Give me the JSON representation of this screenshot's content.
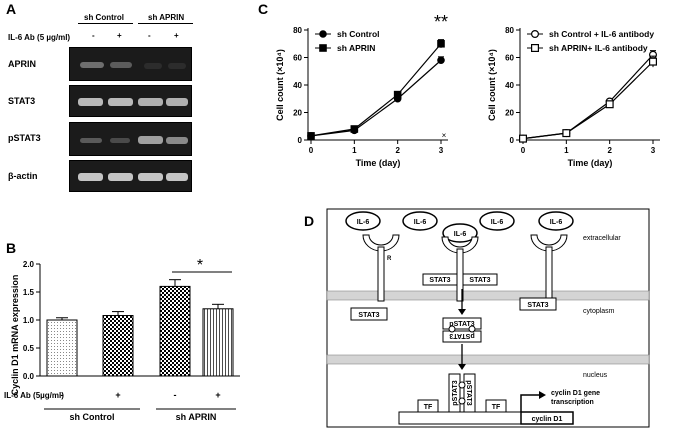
{
  "panels": {
    "a": "A",
    "b": "B",
    "c": "C",
    "d": "D"
  },
  "blot": {
    "group_control": "sh Control",
    "group_aprin": "sh APRIN",
    "treatment_label": "IL-6 Ab (5 µg/ml)",
    "signs": [
      "-",
      "+",
      "-",
      "+"
    ],
    "rows": [
      "APRIN",
      "STAT3",
      "pSTAT3",
      "β-actin"
    ]
  },
  "chart_data": [
    {
      "type": "bar",
      "panel": "B",
      "ylabel": "Cyclin D1 mRNA expression",
      "ylim": [
        0,
        2.0
      ],
      "yticks": [
        "0.0",
        "0.5",
        "1.0",
        "1.5",
        "2.0"
      ],
      "values": [
        1.0,
        1.08,
        1.6,
        1.2
      ],
      "errors": [
        0.04,
        0.07,
        0.12,
        0.08
      ],
      "patterns": [
        "dots",
        "checker",
        "checker",
        "hatch"
      ],
      "treatment_label": "IL-6 Ab (5µg/ml)",
      "signs": [
        "-",
        "+",
        "-",
        "+"
      ],
      "groups": [
        "sh Control",
        "sh APRIN"
      ],
      "significance": "*"
    },
    {
      "type": "line",
      "panel": "C-left",
      "xlabel": "Time (day)",
      "ylabel": "Cell count (×10⁴)",
      "x": [
        0,
        1,
        2,
        3
      ],
      "xticks": [
        "0",
        "1",
        "2",
        "3"
      ],
      "yticks": [
        "0",
        "20",
        "40",
        "60",
        "80"
      ],
      "ylim": [
        0,
        80
      ],
      "series": [
        {
          "name": "sh Control",
          "marker": "filled-circle",
          "values": [
            3,
            7,
            30,
            58
          ],
          "errors": [
            0.5,
            1,
            1.5,
            2.5
          ]
        },
        {
          "name": "sh APRIN",
          "marker": "filled-square",
          "values": [
            3,
            8,
            33,
            70
          ],
          "errors": [
            0.5,
            1,
            2,
            3
          ]
        }
      ],
      "significance": "**",
      "corner_mark": "×"
    },
    {
      "type": "line",
      "panel": "C-right",
      "xlabel": "Time (day)",
      "ylabel": "Cell count (×10⁴)",
      "x": [
        0,
        1,
        2,
        3
      ],
      "xticks": [
        "0",
        "1",
        "2",
        "3"
      ],
      "yticks": [
        "0",
        "20",
        "40",
        "60",
        "80"
      ],
      "ylim": [
        0,
        80
      ],
      "series": [
        {
          "name": "sh Control + IL-6 antibody",
          "marker": "open-circle",
          "values": [
            1,
            5,
            28,
            62
          ],
          "errors": [
            0.5,
            1,
            1.5,
            3
          ]
        },
        {
          "name": "sh APRIN+ IL-6 antibody",
          "marker": "open-square",
          "values": [
            1,
            5,
            26,
            57
          ],
          "errors": [
            0.5,
            1,
            1.5,
            4
          ]
        }
      ]
    }
  ],
  "diagram": {
    "il6": "IL-6",
    "receptor": "R",
    "stat3": "STAT3",
    "pstat3": "pSTAT3",
    "extracellular": "extracellular",
    "cytoplasm": "cytoplasm",
    "nucleus": "nucleus",
    "tf": "TF",
    "cyclin_gene": "cyclin D1",
    "transcription_line1": "cyclin D1 gene",
    "transcription_line2": "transcription"
  }
}
